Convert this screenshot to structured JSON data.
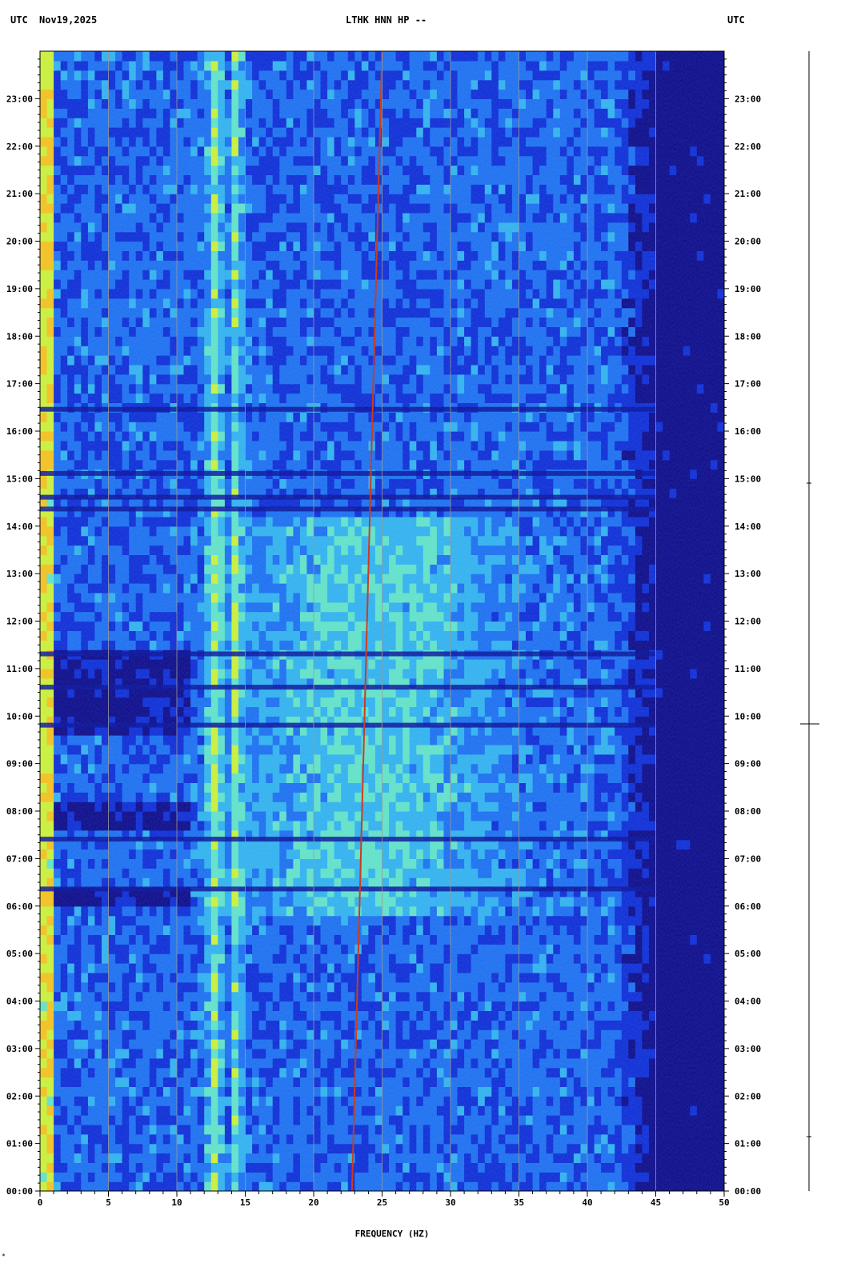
{
  "header": {
    "left_tz": "UTC",
    "date": "Nov19,2025",
    "station": "LTHK HNN HP --",
    "right_tz": "UTC"
  },
  "corner_mark": "*",
  "chart_data": {
    "type": "heatmap",
    "title": "LTHK HNN HP --",
    "xlabel": "FREQUENCY (HZ)",
    "ylabel": "",
    "xlim": [
      0,
      50
    ],
    "ylim": [
      "00:00",
      "24:00"
    ],
    "x_ticks": [
      "0",
      "5",
      "10",
      "15",
      "20",
      "25",
      "30",
      "35",
      "40",
      "45",
      "50"
    ],
    "y_ticks": [
      "00:00",
      "01:00",
      "02:00",
      "03:00",
      "04:00",
      "05:00",
      "06:00",
      "07:00",
      "08:00",
      "09:00",
      "10:00",
      "11:00",
      "12:00",
      "13:00",
      "14:00",
      "15:00",
      "16:00",
      "17:00",
      "18:00",
      "19:00",
      "20:00",
      "21:00",
      "22:00",
      "23:00"
    ],
    "colormap": [
      "#0a0a8a",
      "#0b2cd6",
      "#1a6ef0",
      "#2fb0ee",
      "#5fe0c8",
      "#c8ee3a",
      "#f0c020",
      "#e03010"
    ],
    "energy_bands_hz": [
      12.8,
      14.4
    ],
    "drifting_line_hz": {
      "start": [
        22.8,
        "00:00"
      ],
      "end": [
        25.0,
        "24:00"
      ]
    },
    "rolloff_hz": 44
  },
  "colors": {
    "background": "#ffffff",
    "low_energy": "#0a0a8a",
    "high_energy": "#e03010",
    "gridline": "#9a9a9a"
  }
}
